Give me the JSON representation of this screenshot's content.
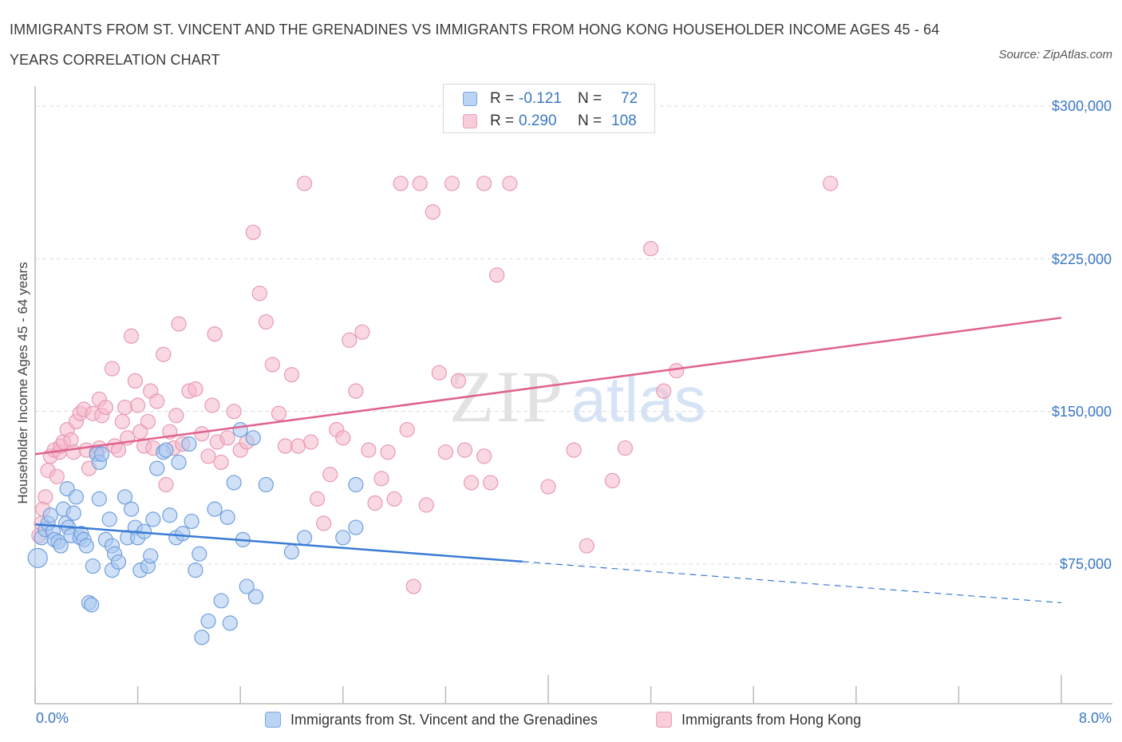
{
  "title": "IMMIGRANTS FROM ST. VINCENT AND THE GRENADINES VS IMMIGRANTS FROM HONG KONG HOUSEHOLDER INCOME AGES 45 - 64 YEARS CORRELATION CHART",
  "source": "Source: ZipAtlas.com",
  "watermark": {
    "zip": "ZIP",
    "atlas": "atlas"
  },
  "legend_top": {
    "rows": [
      {
        "r_label": "R =",
        "r_value": "-0.121",
        "n_label": "N =",
        "n_value": "72",
        "color": "#a9c8f0"
      },
      {
        "r_label": "R =",
        "r_value": "0.290",
        "n_label": "N =",
        "n_value": "108",
        "color": "#f5b8cb"
      }
    ]
  },
  "legend_bottom": {
    "items": [
      "Immigrants from St. Vincent and the Grenadines",
      "Immigrants from Hong Kong"
    ]
  },
  "colors": {
    "blue": "#3a7bd5",
    "blue_fill": "#a9c8f0",
    "pink": "#e0628f",
    "pink_fill": "#f5b8cb",
    "axis_text": "#3b78c4"
  },
  "chart_data": {
    "type": "scatter",
    "title": "IMMIGRANTS FROM ST. VINCENT AND THE GRENADINES VS IMMIGRANTS FROM HONG KONG HOUSEHOLDER INCOME AGES 45 - 64 YEARS CORRELATION CHART",
    "xlabel": "",
    "ylabel": "Householder Income Ages 45 - 64 years",
    "xlim": [
      0,
      8
    ],
    "ylim": [
      0,
      312000
    ],
    "x_tick_labels": [
      "0.0%",
      "8.0%"
    ],
    "y_ticks": [
      75000,
      150000,
      225000,
      300000
    ],
    "y_tick_labels": [
      "$75,000",
      "$150,000",
      "$225,000",
      "$300,000"
    ],
    "grid": true,
    "legend_position": "top-center",
    "series": [
      {
        "name": "Immigrants from St. Vincent and the Grenadines",
        "color": "#3a7bd5",
        "points": [
          [
            0.02,
            78000
          ],
          [
            0.05,
            88000
          ],
          [
            0.08,
            92000
          ],
          [
            0.1,
            95000
          ],
          [
            0.12,
            99000
          ],
          [
            0.14,
            91000
          ],
          [
            0.15,
            87000
          ],
          [
            0.18,
            86000
          ],
          [
            0.2,
            84000
          ],
          [
            0.22,
            102000
          ],
          [
            0.24,
            95000
          ],
          [
            0.25,
            112000
          ],
          [
            0.26,
            93000
          ],
          [
            0.28,
            89000
          ],
          [
            0.3,
            100000
          ],
          [
            0.32,
            108000
          ],
          [
            0.35,
            88000
          ],
          [
            0.36,
            90000
          ],
          [
            0.38,
            87000
          ],
          [
            0.4,
            84000
          ],
          [
            0.42,
            56000
          ],
          [
            0.44,
            55000
          ],
          [
            0.45,
            74000
          ],
          [
            0.48,
            129000
          ],
          [
            0.5,
            125000
          ],
          [
            0.5,
            107000
          ],
          [
            0.52,
            129000
          ],
          [
            0.55,
            87000
          ],
          [
            0.58,
            97000
          ],
          [
            0.6,
            84000
          ],
          [
            0.6,
            72000
          ],
          [
            0.62,
            80000
          ],
          [
            0.65,
            76000
          ],
          [
            0.7,
            108000
          ],
          [
            0.72,
            88000
          ],
          [
            0.75,
            102000
          ],
          [
            0.78,
            93000
          ],
          [
            0.8,
            88000
          ],
          [
            0.82,
            72000
          ],
          [
            0.85,
            91000
          ],
          [
            0.88,
            74000
          ],
          [
            0.9,
            79000
          ],
          [
            0.92,
            97000
          ],
          [
            0.95,
            122000
          ],
          [
            1.0,
            130000
          ],
          [
            1.02,
            131000
          ],
          [
            1.05,
            99000
          ],
          [
            1.1,
            88000
          ],
          [
            1.12,
            125000
          ],
          [
            1.15,
            90000
          ],
          [
            1.2,
            134000
          ],
          [
            1.22,
            96000
          ],
          [
            1.25,
            72000
          ],
          [
            1.28,
            80000
          ],
          [
            1.3,
            39000
          ],
          [
            1.35,
            47000
          ],
          [
            1.4,
            102000
          ],
          [
            1.45,
            57000
          ],
          [
            1.5,
            98000
          ],
          [
            1.52,
            46000
          ],
          [
            1.55,
            115000
          ],
          [
            1.6,
            141000
          ],
          [
            1.62,
            87000
          ],
          [
            1.65,
            64000
          ],
          [
            1.7,
            137000
          ],
          [
            1.72,
            59000
          ],
          [
            1.8,
            114000
          ],
          [
            2.0,
            81000
          ],
          [
            2.1,
            88000
          ],
          [
            2.4,
            88000
          ],
          [
            2.5,
            93000
          ],
          [
            2.5,
            114000
          ]
        ]
      },
      {
        "name": "Immigrants from Hong Kong",
        "color": "#e0628f",
        "points": [
          [
            0.03,
            89000
          ],
          [
            0.05,
            95000
          ],
          [
            0.06,
            102000
          ],
          [
            0.08,
            108000
          ],
          [
            0.1,
            121000
          ],
          [
            0.12,
            128000
          ],
          [
            0.15,
            131000
          ],
          [
            0.17,
            118000
          ],
          [
            0.19,
            130000
          ],
          [
            0.2,
            133000
          ],
          [
            0.22,
            135000
          ],
          [
            0.25,
            141000
          ],
          [
            0.28,
            136000
          ],
          [
            0.3,
            130000
          ],
          [
            0.32,
            145000
          ],
          [
            0.35,
            149000
          ],
          [
            0.38,
            151000
          ],
          [
            0.4,
            131000
          ],
          [
            0.42,
            122000
          ],
          [
            0.45,
            149000
          ],
          [
            0.48,
            130000
          ],
          [
            0.5,
            156000
          ],
          [
            0.5,
            132000
          ],
          [
            0.52,
            148000
          ],
          [
            0.55,
            152000
          ],
          [
            0.6,
            171000
          ],
          [
            0.62,
            133000
          ],
          [
            0.65,
            131000
          ],
          [
            0.68,
            145000
          ],
          [
            0.7,
            152000
          ],
          [
            0.72,
            137000
          ],
          [
            0.75,
            187000
          ],
          [
            0.78,
            165000
          ],
          [
            0.8,
            153000
          ],
          [
            0.82,
            140000
          ],
          [
            0.85,
            133000
          ],
          [
            0.88,
            145000
          ],
          [
            0.9,
            160000
          ],
          [
            0.92,
            132000
          ],
          [
            0.95,
            155000
          ],
          [
            1.0,
            178000
          ],
          [
            1.02,
            114000
          ],
          [
            1.05,
            140000
          ],
          [
            1.08,
            132000
          ],
          [
            1.1,
            148000
          ],
          [
            1.12,
            193000
          ],
          [
            1.15,
            134000
          ],
          [
            1.2,
            160000
          ],
          [
            1.25,
            161000
          ],
          [
            1.3,
            139000
          ],
          [
            1.35,
            128000
          ],
          [
            1.38,
            153000
          ],
          [
            1.4,
            188000
          ],
          [
            1.42,
            135000
          ],
          [
            1.45,
            125000
          ],
          [
            1.5,
            137000
          ],
          [
            1.55,
            150000
          ],
          [
            1.6,
            131000
          ],
          [
            1.65,
            135000
          ],
          [
            1.7,
            238000
          ],
          [
            1.75,
            208000
          ],
          [
            1.8,
            194000
          ],
          [
            1.85,
            173000
          ],
          [
            1.9,
            149000
          ],
          [
            1.95,
            133000
          ],
          [
            2.0,
            168000
          ],
          [
            2.05,
            133000
          ],
          [
            2.1,
            262000
          ],
          [
            2.15,
            135000
          ],
          [
            2.2,
            107000
          ],
          [
            2.25,
            95000
          ],
          [
            2.3,
            119000
          ],
          [
            2.35,
            141000
          ],
          [
            2.4,
            137000
          ],
          [
            2.45,
            185000
          ],
          [
            2.5,
            160000
          ],
          [
            2.55,
            189000
          ],
          [
            2.6,
            131000
          ],
          [
            2.65,
            105000
          ],
          [
            2.7,
            117000
          ],
          [
            2.75,
            130000
          ],
          [
            2.8,
            107000
          ],
          [
            2.85,
            262000
          ],
          [
            2.9,
            141000
          ],
          [
            2.95,
            64000
          ],
          [
            3.0,
            262000
          ],
          [
            3.05,
            104000
          ],
          [
            3.1,
            248000
          ],
          [
            3.15,
            169000
          ],
          [
            3.2,
            130000
          ],
          [
            3.25,
            262000
          ],
          [
            3.3,
            165000
          ],
          [
            3.35,
            131000
          ],
          [
            3.4,
            115000
          ],
          [
            3.5,
            262000
          ],
          [
            3.5,
            128000
          ],
          [
            3.55,
            115000
          ],
          [
            3.6,
            217000
          ],
          [
            3.7,
            262000
          ],
          [
            4.0,
            113000
          ],
          [
            4.2,
            131000
          ],
          [
            4.3,
            84000
          ],
          [
            4.5,
            116000
          ],
          [
            4.6,
            132000
          ],
          [
            4.8,
            230000
          ],
          [
            4.9,
            160000
          ],
          [
            5.0,
            170000
          ],
          [
            6.2,
            262000
          ]
        ]
      }
    ],
    "trend_lines": [
      {
        "series": "Immigrants from St. Vincent and the Grenadines",
        "solid_x": [
          0,
          3.8
        ],
        "dashed_x": [
          3.8,
          8.0
        ],
        "y_at_0": 94500,
        "y_at_8": 56000
      },
      {
        "series": "Immigrants from Hong Kong",
        "solid_x": [
          0,
          8.0
        ],
        "y_at_0": 129000,
        "y_at_8": 196000
      }
    ]
  }
}
